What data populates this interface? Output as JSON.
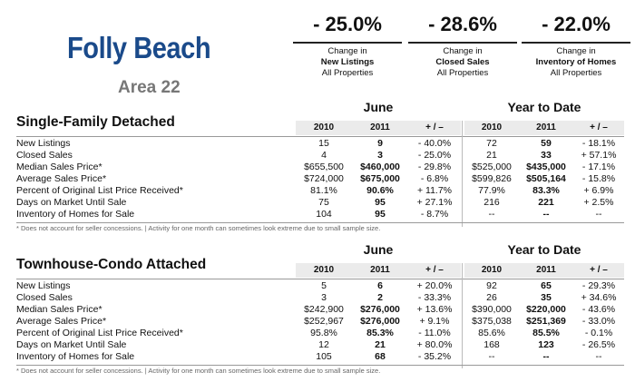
{
  "header": {
    "title": "Folly Beach",
    "area": "Area 22"
  },
  "kpis": [
    {
      "pct": "- 25.0%",
      "change_label": "Change in",
      "metric": "New Listings",
      "scope": "All Properties"
    },
    {
      "pct": "- 28.6%",
      "change_label": "Change in",
      "metric": "Closed Sales",
      "scope": "All Properties"
    },
    {
      "pct": "- 22.0%",
      "change_label": "Change in",
      "metric": "Inventory of Homes",
      "scope": "All Properties"
    }
  ],
  "columns": [
    "2010",
    "2011",
    "+ / –",
    "2010",
    "2011",
    "+ / –"
  ],
  "period_labels": {
    "month": "June",
    "ytd": "Year to Date"
  },
  "sections": [
    {
      "title": "Single-Family Detached",
      "rows": [
        {
          "label": "New Listings",
          "values": [
            "15",
            "9",
            "- 40.0%",
            "72",
            "59",
            "- 18.1%"
          ]
        },
        {
          "label": "Closed Sales",
          "values": [
            "4",
            "3",
            "- 25.0%",
            "21",
            "33",
            "+ 57.1%"
          ]
        },
        {
          "label": "Median Sales Price*",
          "values": [
            "$655,500",
            "$460,000",
            "- 29.8%",
            "$525,000",
            "$435,000",
            "- 17.1%"
          ]
        },
        {
          "label": "Average Sales Price*",
          "values": [
            "$724,000",
            "$675,000",
            "- 6.8%",
            "$599,826",
            "$505,164",
            "- 15.8%"
          ]
        },
        {
          "label": "Percent of Original List Price Received*",
          "values": [
            "81.1%",
            "90.6%",
            "+ 11.7%",
            "77.9%",
            "83.3%",
            "+ 6.9%"
          ]
        },
        {
          "label": "Days on Market Until Sale",
          "values": [
            "75",
            "95",
            "+ 27.1%",
            "216",
            "221",
            "+ 2.5%"
          ]
        },
        {
          "label": "Inventory of Homes for Sale",
          "values": [
            "104",
            "95",
            "- 8.7%",
            "--",
            "--",
            "--"
          ]
        }
      ],
      "footnote": "* Does not account for seller concessions.  |  Activity for one month can sometimes look extreme due to small sample size."
    },
    {
      "title": "Townhouse-Condo Attached",
      "rows": [
        {
          "label": "New Listings",
          "values": [
            "5",
            "6",
            "+ 20.0%",
            "92",
            "65",
            "- 29.3%"
          ]
        },
        {
          "label": "Closed Sales",
          "values": [
            "3",
            "2",
            "- 33.3%",
            "26",
            "35",
            "+ 34.6%"
          ]
        },
        {
          "label": "Median Sales Price*",
          "values": [
            "$242,900",
            "$276,000",
            "+ 13.6%",
            "$390,000",
            "$220,000",
            "- 43.6%"
          ]
        },
        {
          "label": "Average Sales Price*",
          "values": [
            "$252,967",
            "$276,000",
            "+ 9.1%",
            "$375,038",
            "$251,369",
            "- 33.0%"
          ]
        },
        {
          "label": "Percent of Original List Price Received*",
          "values": [
            "95.8%",
            "85.3%",
            "- 11.0%",
            "85.6%",
            "85.5%",
            "- 0.1%"
          ]
        },
        {
          "label": "Days on Market Until Sale",
          "values": [
            "12",
            "21",
            "+ 80.0%",
            "168",
            "123",
            "- 26.5%"
          ]
        },
        {
          "label": "Inventory of Homes for Sale",
          "values": [
            "105",
            "68",
            "- 35.2%",
            "--",
            "--",
            "--"
          ]
        }
      ],
      "footnote": "* Does not account for seller concessions.  |  Activity for one month can sometimes look extreme due to small sample size."
    }
  ]
}
